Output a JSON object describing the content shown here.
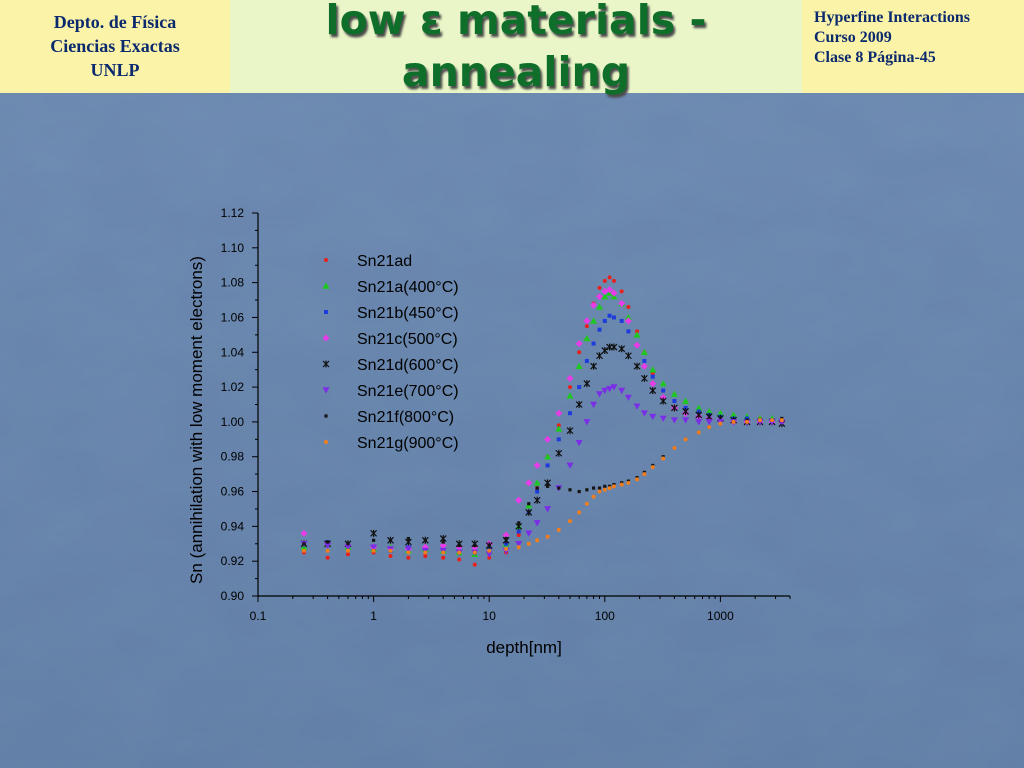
{
  "header": {
    "left_lines": [
      "Depto. de Física",
      "Ciencias Exactas",
      "UNLP"
    ],
    "title_lines": [
      "low ε materials -",
      "annealing"
    ],
    "right_lines": [
      "Hyperfine Interactions",
      "Curso 2009",
      "Clase 8  Página-45"
    ]
  },
  "colors": {
    "header_bg": "#fbf3a8",
    "title_bg": "#eaf6c8",
    "title_text": "#0f6e2a",
    "header_text": "#0b2a6e",
    "slide_bg": "#4f6f9a"
  },
  "chart_data": {
    "type": "scatter",
    "xlabel": "depth[nm]",
    "ylabel": "Sn (annihilation with low moment electrons)",
    "x_scale": "log",
    "xlim": [
      0.1,
      4000
    ],
    "ylim": [
      0.9,
      1.12
    ],
    "x_ticks": [
      0.1,
      1,
      10,
      100,
      1000
    ],
    "x_tick_labels": [
      "0.1",
      "1",
      "10",
      "100",
      "1000"
    ],
    "y_ticks": [
      0.9,
      0.92,
      0.94,
      0.96,
      0.98,
      1.0,
      1.02,
      1.04,
      1.06,
      1.08,
      1.1,
      1.12
    ],
    "y_tick_labels": [
      "0.90",
      "0.92",
      "0.94",
      "0.96",
      "0.98",
      "1.00",
      "1.02",
      "1.04",
      "1.06",
      "1.08",
      "1.10",
      "1.12"
    ],
    "legend_position": "top-left inside plot",
    "series": [
      {
        "name": "Sn21ad",
        "marker": "dot",
        "color": "#e8201c",
        "x": [
          0.25,
          0.4,
          0.6,
          1.0,
          1.4,
          2.0,
          2.8,
          4.0,
          5.5,
          7.5,
          10,
          14,
          18,
          22,
          26,
          32,
          40,
          50,
          60,
          70,
          80,
          90,
          100,
          110,
          120,
          140,
          160,
          190,
          220,
          260,
          320,
          400,
          500,
          650,
          800,
          1000,
          1300,
          1700,
          2200,
          2800,
          3400
        ],
        "y": [
          0.925,
          0.922,
          0.924,
          0.925,
          0.923,
          0.922,
          0.923,
          0.922,
          0.921,
          0.918,
          0.922,
          0.925,
          0.935,
          0.948,
          0.962,
          0.98,
          0.998,
          1.02,
          1.04,
          1.055,
          1.068,
          1.077,
          1.081,
          1.083,
          1.081,
          1.075,
          1.066,
          1.052,
          1.04,
          1.028,
          1.018,
          1.012,
          1.008,
          1.006,
          1.005,
          1.004,
          1.003,
          1.002,
          1.002,
          1.001,
          1.001
        ]
      },
      {
        "name": "Sn21a(400°C)",
        "marker": "triangle",
        "color": "#1ec81e",
        "x": [
          0.25,
          0.4,
          0.6,
          1.0,
          1.4,
          2.0,
          2.8,
          4.0,
          5.5,
          7.5,
          10,
          14,
          18,
          22,
          26,
          32,
          40,
          50,
          60,
          70,
          80,
          90,
          100,
          110,
          120,
          140,
          160,
          190,
          220,
          260,
          320,
          400,
          500,
          650,
          800,
          1000,
          1300,
          1700,
          2200,
          2800,
          3400
        ],
        "y": [
          0.928,
          0.93,
          0.928,
          0.927,
          0.928,
          0.926,
          0.927,
          0.926,
          0.925,
          0.924,
          0.926,
          0.93,
          0.94,
          0.952,
          0.965,
          0.98,
          0.996,
          1.015,
          1.032,
          1.048,
          1.058,
          1.066,
          1.072,
          1.074,
          1.072,
          1.068,
          1.06,
          1.05,
          1.04,
          1.03,
          1.022,
          1.016,
          1.012,
          1.008,
          1.006,
          1.005,
          1.004,
          1.003,
          1.002,
          1.002,
          1.001
        ]
      },
      {
        "name": "Sn21b(450°C)",
        "marker": "square",
        "color": "#1e3cdc",
        "x": [
          0.25,
          0.4,
          0.6,
          1.0,
          1.4,
          2.0,
          2.8,
          4.0,
          5.5,
          7.5,
          10,
          14,
          18,
          22,
          26,
          32,
          40,
          50,
          60,
          70,
          80,
          90,
          100,
          110,
          120,
          140,
          160,
          190,
          220,
          260,
          320,
          400,
          500,
          650,
          800,
          1000,
          1300,
          1700,
          2200,
          2800,
          3400
        ],
        "y": [
          0.93,
          0.931,
          0.93,
          0.927,
          0.926,
          0.928,
          0.927,
          0.926,
          0.927,
          0.925,
          0.927,
          0.93,
          0.937,
          0.948,
          0.96,
          0.975,
          0.99,
          1.005,
          1.02,
          1.035,
          1.045,
          1.053,
          1.058,
          1.061,
          1.06,
          1.058,
          1.052,
          1.044,
          1.035,
          1.026,
          1.018,
          1.012,
          1.008,
          1.006,
          1.004,
          1.003,
          1.002,
          1.002,
          1.001,
          1.001,
          1.0
        ]
      },
      {
        "name": "Sn21c(500°C)",
        "marker": "diamond",
        "color": "#e83ce8",
        "x": [
          0.25,
          0.4,
          0.6,
          1.0,
          1.4,
          2.0,
          2.8,
          4.0,
          5.5,
          7.5,
          10,
          14,
          18,
          22,
          26,
          32,
          40,
          50,
          60,
          70,
          80,
          90,
          100,
          110,
          120,
          140,
          160,
          190,
          220,
          260,
          320,
          400,
          500,
          650,
          800,
          1000,
          1300,
          1700,
          2200,
          2800,
          3400
        ],
        "y": [
          0.936,
          0.93,
          0.929,
          0.928,
          0.927,
          0.927,
          0.928,
          0.929,
          0.928,
          0.928,
          0.93,
          0.935,
          0.955,
          0.965,
          0.975,
          0.99,
          1.005,
          1.025,
          1.045,
          1.058,
          1.067,
          1.072,
          1.075,
          1.076,
          1.074,
          1.068,
          1.058,
          1.044,
          1.032,
          1.022,
          1.014,
          1.008,
          1.005,
          1.003,
          1.002,
          1.001,
          1.0,
          1.0,
          1.0,
          1.0,
          1.0
        ]
      },
      {
        "name": "Sn21d(600°C)",
        "marker": "star",
        "color": "#101010",
        "x": [
          0.25,
          0.4,
          0.6,
          1.0,
          1.4,
          2.0,
          2.8,
          4.0,
          5.5,
          7.5,
          10,
          14,
          18,
          22,
          26,
          32,
          40,
          50,
          60,
          70,
          80,
          90,
          100,
          110,
          120,
          140,
          160,
          190,
          220,
          260,
          320,
          400,
          500,
          650,
          800,
          1000,
          1300,
          1700,
          2200,
          2800,
          3400
        ],
        "y": [
          0.93,
          0.93,
          0.93,
          0.936,
          0.932,
          0.931,
          0.932,
          0.933,
          0.93,
          0.93,
          0.929,
          0.932,
          0.94,
          0.948,
          0.955,
          0.965,
          0.982,
          0.995,
          1.01,
          1.022,
          1.032,
          1.038,
          1.041,
          1.043,
          1.043,
          1.042,
          1.038,
          1.032,
          1.025,
          1.018,
          1.012,
          1.008,
          1.006,
          1.004,
          1.003,
          1.002,
          1.001,
          1.0,
          1.0,
          1.0,
          0.999
        ]
      },
      {
        "name": "Sn21e(700°C)",
        "marker": "triangle-down",
        "color": "#7a2ee6",
        "x": [
          0.25,
          0.4,
          0.6,
          1.0,
          1.4,
          2.0,
          2.8,
          4.0,
          5.5,
          7.5,
          10,
          14,
          18,
          22,
          26,
          32,
          40,
          50,
          60,
          70,
          80,
          90,
          100,
          110,
          120,
          140,
          160,
          190,
          220,
          260,
          320,
          400,
          500,
          650,
          800,
          1000,
          1300,
          1700,
          2200,
          2800,
          3400
        ],
        "y": [
          0.93,
          0.929,
          0.928,
          0.928,
          0.927,
          0.927,
          0.926,
          0.926,
          0.925,
          0.925,
          0.924,
          0.926,
          0.93,
          0.936,
          0.942,
          0.95,
          0.962,
          0.975,
          0.988,
          1.0,
          1.01,
          1.016,
          1.018,
          1.019,
          1.02,
          1.018,
          1.014,
          1.009,
          1.005,
          1.003,
          1.002,
          1.001,
          1.001,
          1.0,
          1.0,
          1.0,
          1.0,
          1.0,
          1.0,
          1.0,
          1.0
        ]
      },
      {
        "name": "Sn21f(800°C)",
        "marker": "small-square",
        "color": "#151515",
        "x": [
          0.25,
          0.4,
          0.6,
          1.0,
          1.4,
          2.0,
          2.8,
          4.0,
          5.5,
          7.5,
          10,
          14,
          18,
          22,
          26,
          32,
          40,
          50,
          60,
          70,
          80,
          90,
          100,
          110,
          120,
          140,
          160,
          190,
          220,
          260,
          320,
          400,
          500,
          650,
          800,
          1000,
          1300,
          1700,
          2200,
          2800,
          3400
        ],
        "y": [
          0.93,
          0.931,
          0.93,
          0.932,
          0.932,
          0.933,
          0.932,
          0.931,
          0.929,
          0.929,
          0.929,
          0.933,
          0.942,
          0.953,
          0.962,
          0.963,
          0.962,
          0.961,
          0.96,
          0.961,
          0.962,
          0.962,
          0.963,
          0.963,
          0.964,
          0.965,
          0.966,
          0.968,
          0.971,
          0.975,
          0.98,
          0.985,
          0.99,
          0.994,
          0.997,
          0.999,
          1.0,
          1.001,
          1.001,
          1.001,
          1.002
        ]
      },
      {
        "name": "Sn21g(900°C)",
        "marker": "dot",
        "color": "#f07d1e",
        "x": [
          0.25,
          0.4,
          0.6,
          1.0,
          1.4,
          2.0,
          2.8,
          4.0,
          5.5,
          7.5,
          10,
          14,
          18,
          22,
          26,
          32,
          40,
          50,
          60,
          70,
          80,
          90,
          100,
          110,
          120,
          140,
          160,
          190,
          220,
          260,
          320,
          400,
          500,
          650,
          800,
          1000,
          1300,
          1700,
          2200,
          2800,
          3400
        ],
        "y": [
          0.926,
          0.926,
          0.926,
          0.926,
          0.926,
          0.925,
          0.925,
          0.925,
          0.925,
          0.925,
          0.926,
          0.927,
          0.928,
          0.93,
          0.932,
          0.934,
          0.938,
          0.943,
          0.948,
          0.953,
          0.957,
          0.96,
          0.961,
          0.962,
          0.963,
          0.964,
          0.965,
          0.967,
          0.97,
          0.974,
          0.979,
          0.985,
          0.99,
          0.994,
          0.997,
          0.999,
          1.0,
          1.0,
          1.001,
          1.001,
          1.001
        ]
      }
    ]
  }
}
